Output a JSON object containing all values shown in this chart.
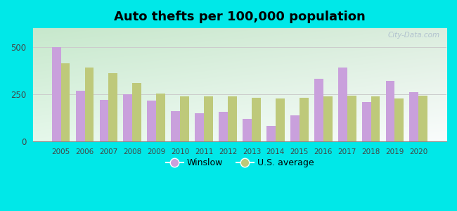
{
  "title": "Auto thefts per 100,000 population",
  "years": [
    2005,
    2006,
    2007,
    2008,
    2009,
    2010,
    2011,
    2012,
    2013,
    2014,
    2015,
    2016,
    2017,
    2018,
    2019,
    2020
  ],
  "winslow": [
    500,
    270,
    220,
    250,
    215,
    160,
    148,
    155,
    120,
    82,
    138,
    330,
    390,
    210,
    320,
    262
  ],
  "us_average": [
    415,
    390,
    360,
    310,
    255,
    240,
    240,
    240,
    230,
    228,
    232,
    238,
    243,
    238,
    228,
    243
  ],
  "winslow_color": "#c9a0dc",
  "us_avg_color": "#bec97a",
  "outer_bg": "#00e8e8",
  "ylim": [
    0,
    600
  ],
  "yticks": [
    0,
    250,
    500
  ],
  "bar_width": 0.38,
  "legend_labels": [
    "Winslow",
    "U.S. average"
  ],
  "watermark": "City-Data.com"
}
